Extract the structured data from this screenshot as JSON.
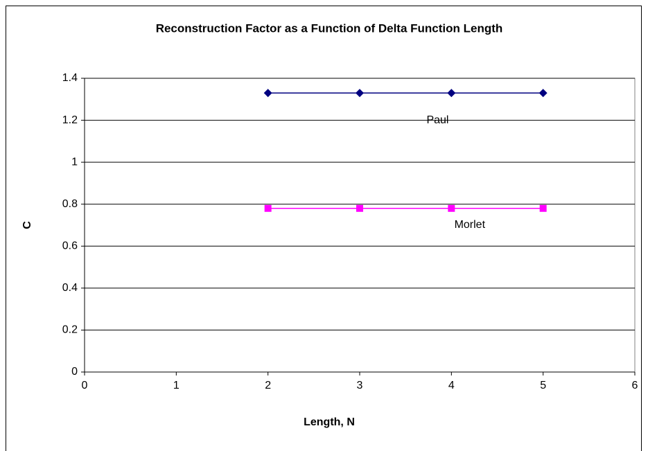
{
  "chart_data": {
    "type": "line",
    "title": "Reconstruction Factor as a Function of Delta Function Length",
    "x_label": "Length, N",
    "y_label": "C",
    "x": [
      2,
      3,
      4,
      5
    ],
    "series": [
      {
        "name": "Paul",
        "color": "#000080",
        "marker": "diamond",
        "values": [
          1.33,
          1.33,
          1.33,
          1.33
        ]
      },
      {
        "name": "Morlet",
        "color": "#ff00ff",
        "marker": "square",
        "values": [
          0.78,
          0.78,
          0.78,
          0.78
        ]
      }
    ],
    "xlim": [
      0,
      6
    ],
    "xticks": [
      0,
      1,
      2,
      3,
      4,
      5,
      6
    ],
    "ylim": [
      0,
      1.4
    ],
    "yticks": [
      0,
      0.2,
      0.4,
      0.6,
      0.8,
      1,
      1.2,
      1.4
    ],
    "grid": true,
    "legend": false
  }
}
